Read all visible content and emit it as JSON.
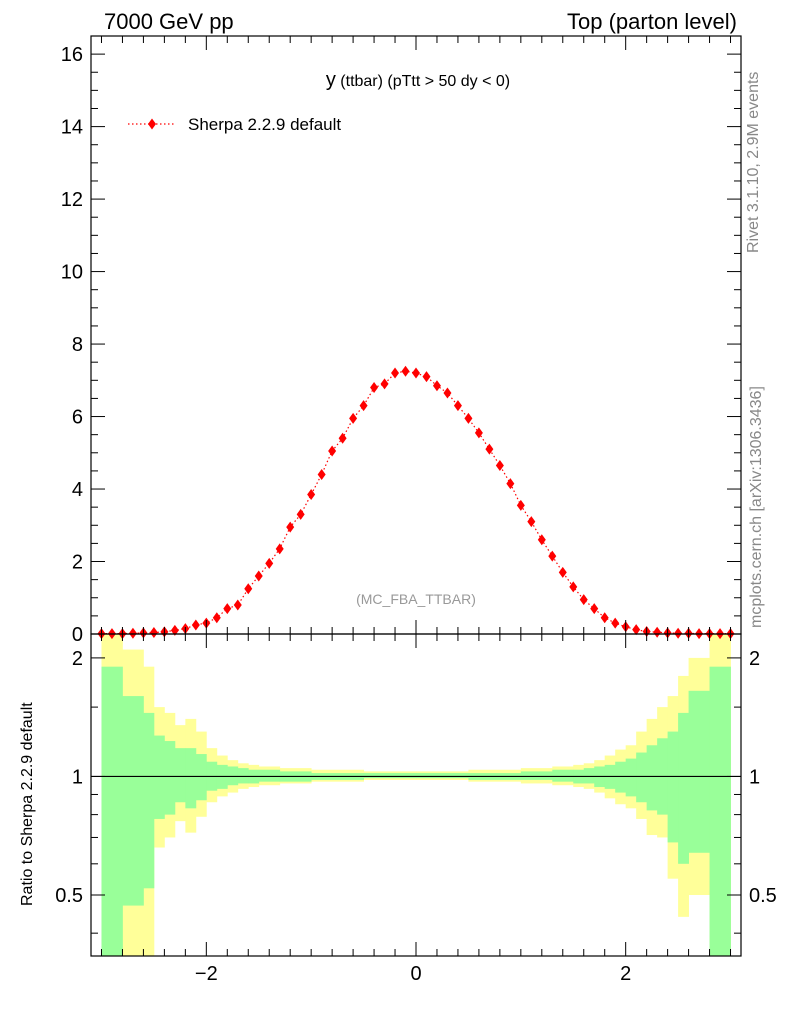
{
  "header": {
    "left": "7000 GeV pp",
    "right": "Top (parton level)"
  },
  "side_labels": {
    "rivet": "Rivet 3.1.10,  2.9M events",
    "mcplots": "mcplots.cern.ch [arXiv:1306.3436]"
  },
  "chart_data": [
    {
      "type": "scatter",
      "title_main": "y",
      "title_rest": " (ttbar) (pTtt > 50 dy < 0)",
      "analysis_tag": "(MC_FBA_TTBAR)",
      "ylim": [
        0,
        16.5
      ],
      "xlim": [
        -3.1,
        3.1
      ],
      "yticks": [
        0,
        2,
        4,
        6,
        8,
        10,
        12,
        14,
        16
      ],
      "ytick_labels": [
        "0",
        "2",
        "4",
        "6",
        "8",
        "10",
        "12",
        "14",
        "16"
      ],
      "legend": {
        "placement": "top-left"
      },
      "series": [
        {
          "name": "Sherpa 2.2.9 default",
          "color": "#ff0000",
          "marker": "diamond",
          "line": "dotted",
          "x": [
            -3.0,
            -2.9,
            -2.8,
            -2.7,
            -2.6,
            -2.5,
            -2.4,
            -2.3,
            -2.2,
            -2.1,
            -2.0,
            -1.9,
            -1.8,
            -1.7,
            -1.6,
            -1.5,
            -1.4,
            -1.3,
            -1.2,
            -1.1,
            -1.0,
            -0.9,
            -0.8,
            -0.7,
            -0.6,
            -0.5,
            -0.4,
            -0.3,
            -0.2,
            -0.1,
            0.0,
            0.1,
            0.2,
            0.3,
            0.4,
            0.5,
            0.6,
            0.7,
            0.8,
            0.9,
            1.0,
            1.1,
            1.2,
            1.3,
            1.4,
            1.5,
            1.6,
            1.7,
            1.8,
            1.9,
            2.0,
            2.1,
            2.2,
            2.3,
            2.4,
            2.5,
            2.6,
            2.7,
            2.8,
            2.9,
            3.0
          ],
          "y": [
            0.01,
            0.01,
            0.01,
            0.02,
            0.03,
            0.04,
            0.06,
            0.1,
            0.15,
            0.25,
            0.3,
            0.45,
            0.7,
            0.8,
            1.25,
            1.6,
            1.95,
            2.35,
            2.95,
            3.3,
            3.85,
            4.4,
            5.05,
            5.4,
            5.95,
            6.3,
            6.8,
            6.9,
            7.2,
            7.25,
            7.2,
            7.1,
            6.85,
            6.65,
            6.3,
            5.95,
            5.55,
            5.1,
            4.65,
            4.15,
            3.55,
            3.1,
            2.6,
            2.15,
            1.7,
            1.3,
            0.95,
            0.7,
            0.45,
            0.3,
            0.2,
            0.12,
            0.07,
            0.05,
            0.03,
            0.02,
            0.02,
            0.01,
            0.01,
            0.01,
            0.01
          ]
        }
      ]
    },
    {
      "type": "area",
      "ylabel": "Ratio to Sherpa 2.2.9 default",
      "ylim": [
        0.35,
        2.3
      ],
      "scale": "log",
      "xlim": [
        -3.1,
        3.1
      ],
      "xticks": [
        -2,
        0,
        2
      ],
      "xtick_labels": [
        "−2",
        "0",
        "2"
      ],
      "yticks": [
        0.5,
        1,
        2
      ],
      "ytick_labels": [
        "0.5",
        "1",
        "2"
      ],
      "reference_line": 1,
      "bin_edges": [
        -3.0,
        -2.8,
        -2.6,
        -2.5,
        -2.4,
        -2.3,
        -2.2,
        -2.1,
        -2.0,
        -1.9,
        -1.8,
        -1.7,
        -1.6,
        -1.5,
        -1.3,
        -1.0,
        -0.5,
        0.0,
        0.5,
        1.0,
        1.3,
        1.5,
        1.6,
        1.7,
        1.8,
        1.9,
        2.0,
        2.1,
        2.2,
        2.3,
        2.4,
        2.5,
        2.6,
        2.8,
        3.0
      ],
      "bands": [
        {
          "color": "#ffff99",
          "upper": [
            2.3,
            2.1,
            1.9,
            1.5,
            1.45,
            1.35,
            1.4,
            1.3,
            1.18,
            1.13,
            1.1,
            1.08,
            1.07,
            1.06,
            1.05,
            1.04,
            1.03,
            1.03,
            1.04,
            1.05,
            1.06,
            1.07,
            1.08,
            1.1,
            1.13,
            1.17,
            1.2,
            1.3,
            1.4,
            1.5,
            1.6,
            1.8,
            2.0,
            2.3
          ],
          "lower": [
            0.3,
            0.3,
            0.3,
            0.66,
            0.7,
            0.77,
            0.72,
            0.79,
            0.86,
            0.89,
            0.91,
            0.93,
            0.94,
            0.95,
            0.96,
            0.97,
            0.98,
            0.98,
            0.97,
            0.96,
            0.95,
            0.94,
            0.93,
            0.91,
            0.88,
            0.85,
            0.83,
            0.78,
            0.71,
            0.7,
            0.55,
            0.44,
            0.5,
            0.3
          ]
        },
        {
          "color": "#99ff99",
          "upper": [
            1.9,
            1.6,
            1.45,
            1.27,
            1.23,
            1.18,
            1.18,
            1.14,
            1.09,
            1.07,
            1.06,
            1.05,
            1.04,
            1.04,
            1.03,
            1.02,
            1.02,
            1.02,
            1.02,
            1.03,
            1.04,
            1.04,
            1.05,
            1.06,
            1.07,
            1.09,
            1.11,
            1.15,
            1.2,
            1.25,
            1.3,
            1.45,
            1.65,
            1.9
          ],
          "lower": [
            0.3,
            0.47,
            0.52,
            0.78,
            0.8,
            0.86,
            0.83,
            0.87,
            0.92,
            0.93,
            0.95,
            0.96,
            0.96,
            0.97,
            0.97,
            0.98,
            0.99,
            0.99,
            0.98,
            0.98,
            0.97,
            0.96,
            0.96,
            0.94,
            0.93,
            0.91,
            0.89,
            0.86,
            0.82,
            0.8,
            0.68,
            0.6,
            0.64,
            0.3
          ]
        }
      ]
    }
  ]
}
